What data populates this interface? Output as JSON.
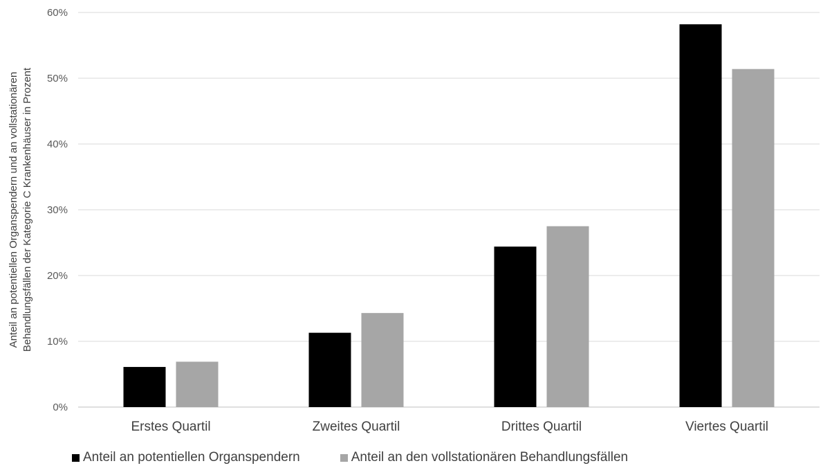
{
  "chart_data": {
    "type": "bar",
    "categories": [
      "Erstes Quartil",
      "Zweites Quartil",
      "Drittes Quartil",
      "Viertes Quartil"
    ],
    "series": [
      {
        "name": "Anteil an potentiellen Organspendern",
        "color": "#000000",
        "values": [
          6.1,
          11.3,
          24.4,
          58.2
        ]
      },
      {
        "name": "Anteil an den vollstationären Behandlungsfällen",
        "color": "#a6a6a6",
        "values": [
          6.9,
          14.3,
          27.5,
          51.4
        ]
      }
    ],
    "ylabel_lines": [
      "Anteil an potentiellen Organspendern und an vollstationären",
      "Behandlungsfällen der Kategorie C Krankenhäuser in Prozent"
    ],
    "yticks": [
      "0%",
      "10%",
      "20%",
      "30%",
      "40%",
      "50%",
      "60%"
    ],
    "ylim": [
      0,
      60
    ],
    "grid": true,
    "legend_position": "bottom"
  }
}
